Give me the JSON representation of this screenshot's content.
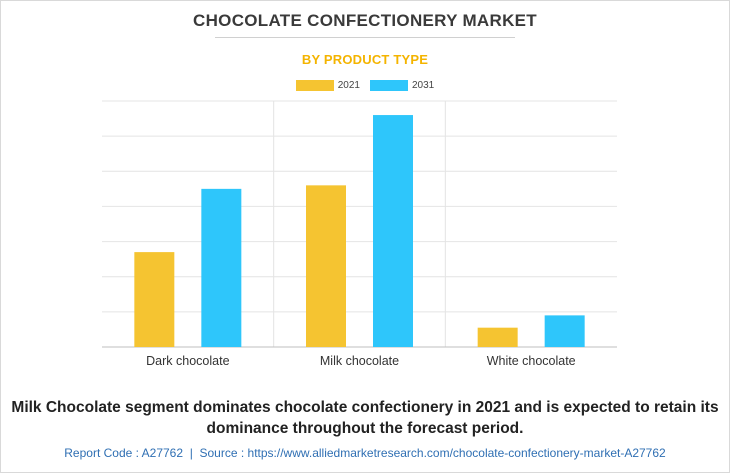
{
  "title": "CHOCOLATE CONFECTIONERY MARKET",
  "subtitle": "BY PRODUCT TYPE",
  "colors": {
    "2021": "#f5c431",
    "2031": "#2ec6fb",
    "subtitle": "#f4b400",
    "grid": "#e4e4e4"
  },
  "chart_data": {
    "type": "bar",
    "categories": [
      "Dark chocolate",
      "Milk chocolate",
      "White chocolate"
    ],
    "series": [
      {
        "name": "2021",
        "values": [
          27,
          46,
          5.5
        ]
      },
      {
        "name": "2031",
        "values": [
          45,
          66,
          9
        ]
      }
    ],
    "ylim": [
      0,
      70
    ],
    "grid": true,
    "y_axis_labels": false,
    "legend_position": "top-center"
  },
  "note": "Milk Chocolate segment dominates chocolate confectionery in 2021 and is expected to retain its dominance throughout the forecast period.",
  "footer": {
    "report_code_label": "Report Code : A27762",
    "separator": "|",
    "source_label": "Source : https://www.alliedmarketresearch.com/chocolate-confectionery-market-A27762"
  }
}
